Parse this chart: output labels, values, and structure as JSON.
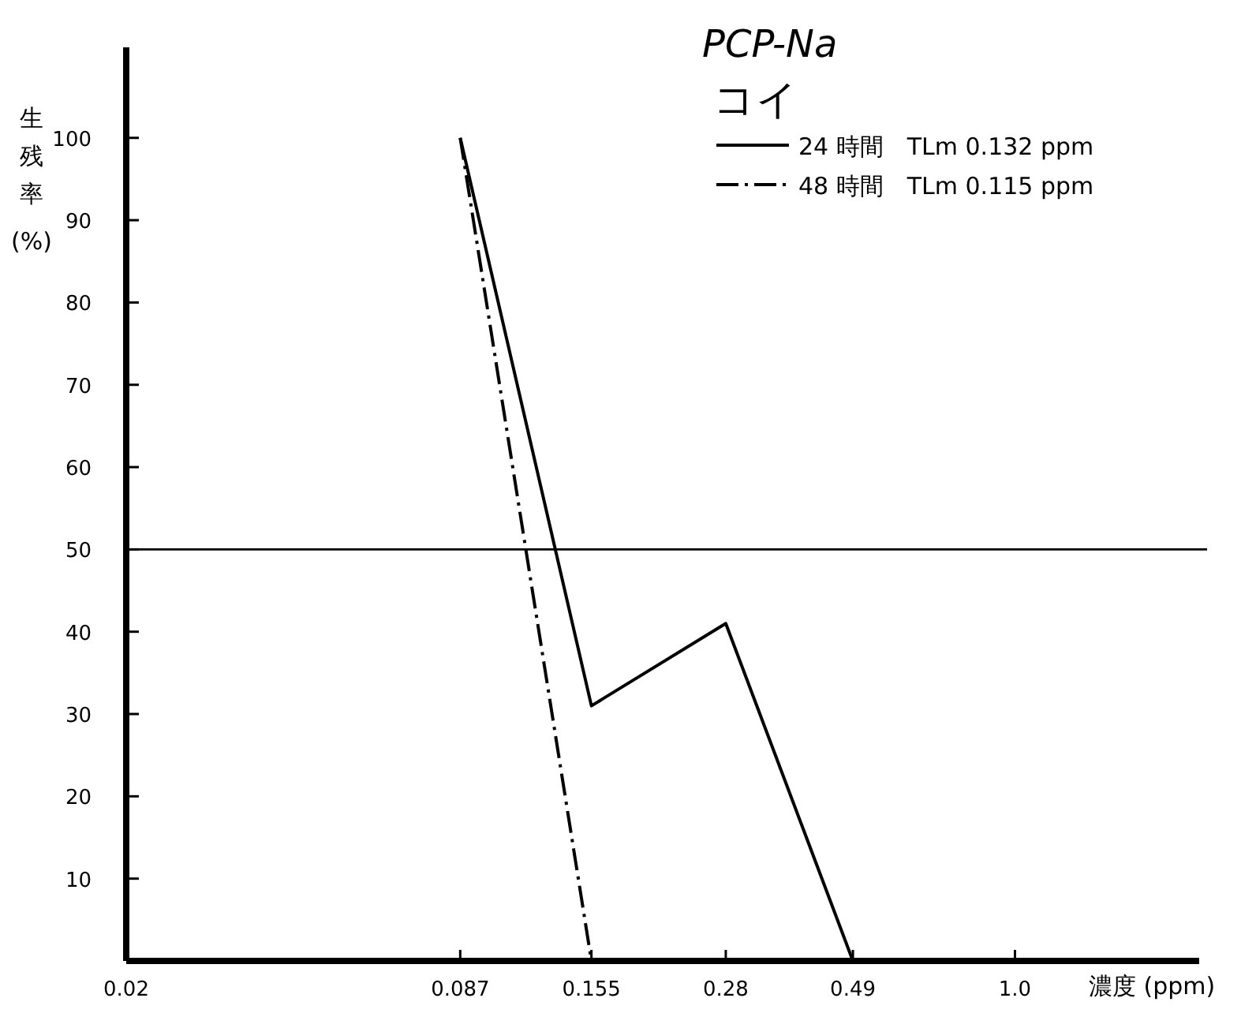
{
  "chart_data": {
    "type": "line",
    "title": "PCP-Na",
    "subtitle": "コイ",
    "xlabel": "濃度 (ppm)",
    "ylabel": "生残率 (%)",
    "log": "x",
    "xlim": [
      0.02,
      2.25
    ],
    "xticks": [
      0.02,
      0.087,
      0.155,
      0.28,
      0.49,
      {
        "value": 1,
        "label": "1.0"
      }
    ],
    "ylim": [
      0,
      111
    ],
    "yticks": [
      10,
      20,
      30,
      40,
      50,
      60,
      70,
      80,
      90,
      100
    ],
    "legend": "top right",
    "ref_lines": [
      {
        "axis": "y",
        "value": 50,
        "color": "#000000"
      }
    ],
    "series": [
      {
        "name": "24 時間　TLm 0.132 ppm",
        "color": "#000000",
        "line_style": "solid",
        "x": [
          0.087,
          0.155,
          0.28,
          0.49
        ],
        "values": [
          100,
          31,
          41,
          0
        ]
      },
      {
        "name": "48 時間　TLm 0.115 ppm",
        "color": "#000000",
        "line_style": "dashdot",
        "x": [
          0.087,
          0.155
        ],
        "values": [
          100,
          0
        ]
      }
    ]
  }
}
